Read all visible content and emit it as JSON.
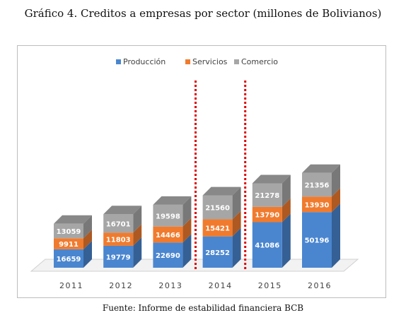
{
  "page": {
    "title": "Gráfico 4. Creditos a empresas por sector (millones de Bolivianos)",
    "source": "Fuente: Informe de estabilidad financiera BCB"
  },
  "chart_data": {
    "type": "bar",
    "stacked": true,
    "style": "3d-column",
    "categories": [
      "2011",
      "2012",
      "2013",
      "2014",
      "2015",
      "2016"
    ],
    "series": [
      {
        "name": "Producción",
        "values": [
          16659,
          19779,
          22690,
          28252,
          41086,
          50196
        ],
        "color": "#4a86cf"
      },
      {
        "name": "Servicios",
        "values": [
          9911,
          11803,
          14466,
          15421,
          13790,
          13930
        ],
        "color": "#f07b2e"
      },
      {
        "name": "Comercio",
        "values": [
          13059,
          16701,
          19598,
          21560,
          21278,
          21356
        ],
        "color": "#a6a6a6"
      }
    ],
    "legend_position": "top",
    "grid": false,
    "annotations": [
      {
        "type": "dotted-vertical-line",
        "color": "#e00000",
        "between": [
          "2013",
          "2014"
        ]
      },
      {
        "type": "dotted-vertical-line",
        "color": "#e00000",
        "between": [
          "2014",
          "2015"
        ]
      }
    ]
  }
}
